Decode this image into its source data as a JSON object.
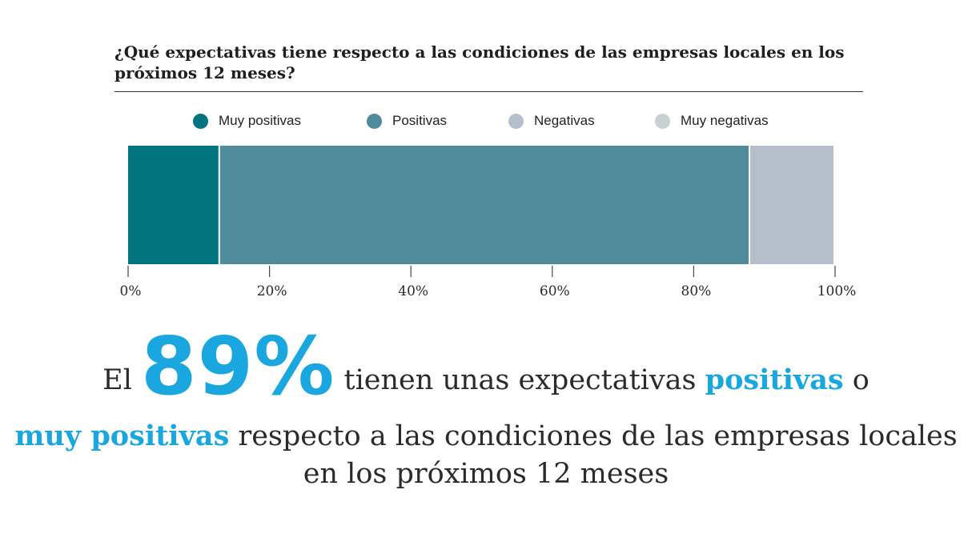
{
  "colors": {
    "muy_positivas": "#00757f",
    "positivas": "#4f8b9a",
    "negativas": "#b5bfcc",
    "muy_negativas": "#c7d2d0",
    "accent": "#1aa7df"
  },
  "chart_data": {
    "type": "bar",
    "orientation": "horizontal-stacked",
    "title": "¿Qué expectativas tiene respecto a las condiciones de las empresas locales en los próximos 12 meses?",
    "series": [
      {
        "name": "Muy positivas",
        "values": [
          13
        ]
      },
      {
        "name": "Positivas",
        "values": [
          75
        ]
      },
      {
        "name": "Negativas",
        "values": [
          12
        ]
      },
      {
        "name": "Muy negativas",
        "values": [
          0
        ]
      }
    ],
    "xlim": [
      0,
      100
    ],
    "ticks": [
      0,
      20,
      40,
      60,
      80,
      100
    ],
    "tick_labels": [
      "0%",
      "20%",
      "40%",
      "60%",
      "80%",
      "100%"
    ],
    "legend_position": "top",
    "grid": false
  },
  "headline": {
    "prefix": "El",
    "big_number": "89%",
    "part1": "tienen unas expectativas",
    "accent1": "positivas",
    "part2": "o",
    "accent2": "muy positivas",
    "part3": "respecto a las condiciones de las empresas locales en los próximos 12 meses"
  }
}
